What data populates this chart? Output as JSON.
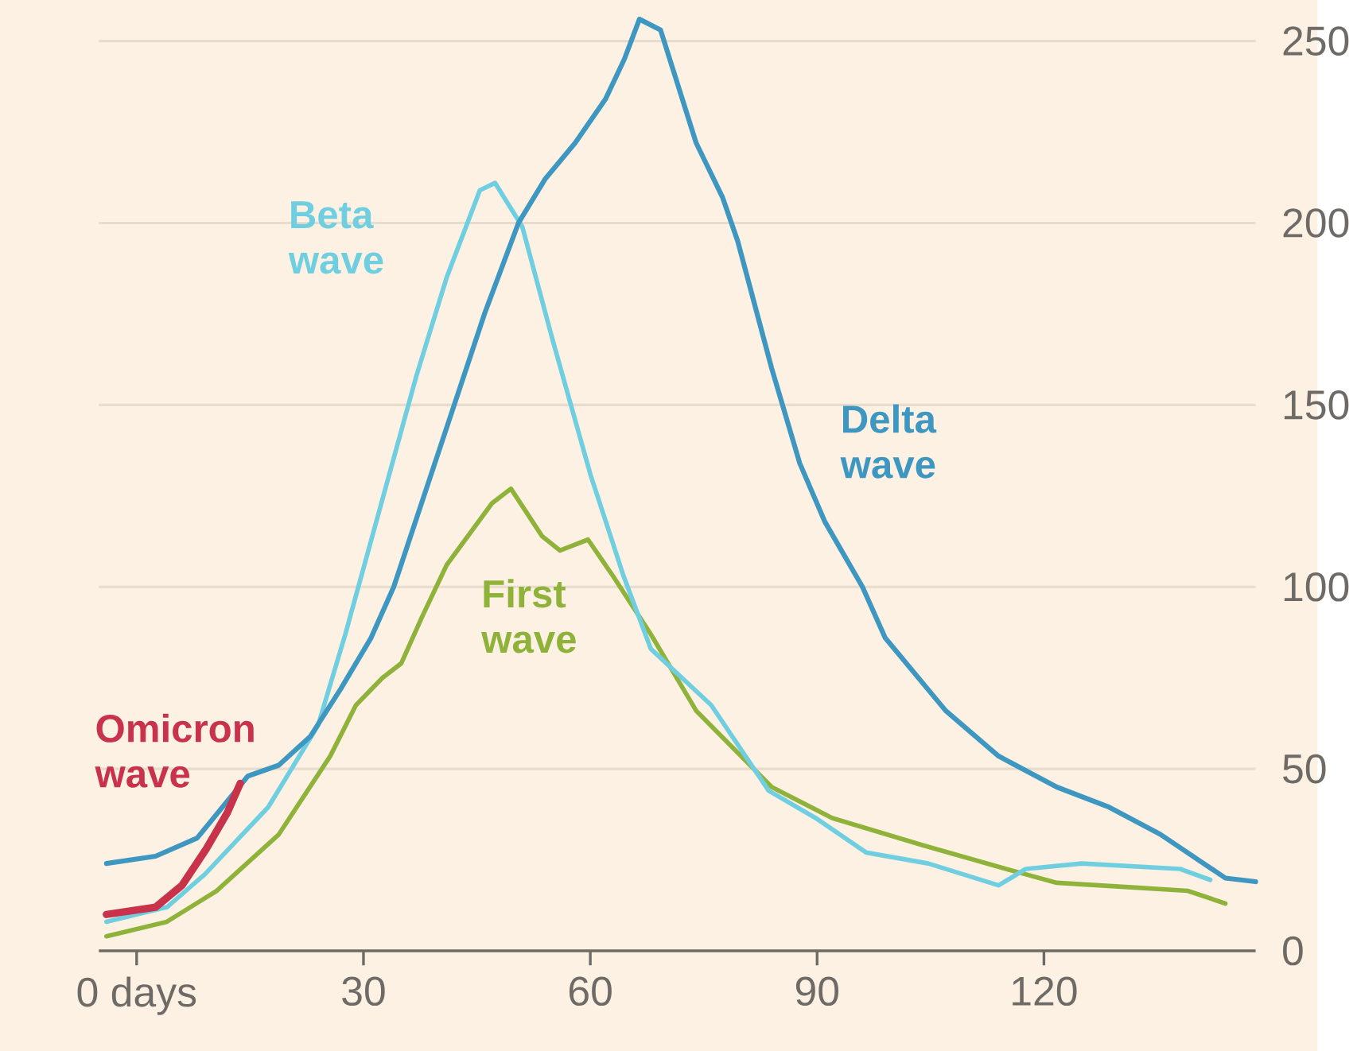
{
  "chart_data": {
    "type": "line",
    "xlim": [
      -5,
      148
    ],
    "ylim": [
      0,
      260
    ],
    "xticks": [
      {
        "value": 0,
        "label": "0 days"
      },
      30,
      60,
      90,
      120
    ],
    "yticks": [
      0,
      50,
      100,
      150,
      200,
      250
    ],
    "grid": "y",
    "series": [
      {
        "name": "First wave",
        "color": "#8fb33a",
        "x": [
          -4,
          4,
          10.6,
          18.8,
          25.6,
          29,
          32.5,
          35,
          37.8,
          41,
          47,
          49.5,
          53.6,
          56,
          59.7,
          63,
          68,
          74,
          84,
          92,
          104,
          115,
          121.7,
          132,
          139,
          144
        ],
        "values": [
          4,
          8,
          16.5,
          32,
          53.5,
          67.5,
          75,
          79,
          92,
          106,
          123,
          127,
          114,
          110,
          113,
          103,
          87,
          66,
          45,
          36.5,
          29,
          22.5,
          18.7,
          17.4,
          16.5,
          13
        ]
      },
      {
        "name": "Beta wave",
        "color": "#6fcfe0",
        "x": [
          -4,
          4,
          9,
          17.4,
          24,
          27.6,
          37,
          41,
          45.4,
          47.4,
          51,
          55,
          60,
          64.4,
          68,
          76,
          83.6,
          89.8,
          96.5,
          104.7,
          114,
          117.6,
          125,
          138,
          142
        ],
        "values": [
          8,
          12,
          21,
          39.5,
          62,
          87,
          158,
          185,
          209,
          211,
          199,
          168,
          131,
          103,
          83,
          67.5,
          44,
          36.5,
          27,
          24,
          18,
          22.5,
          24,
          22.5,
          19.5
        ]
      },
      {
        "name": "Delta wave",
        "color": "#3d97c0",
        "x": [
          -4,
          2.5,
          8,
          14.7,
          18.8,
          23,
          27,
          31,
          34,
          42,
          46,
          50.5,
          54,
          58,
          62,
          64.5,
          66.5,
          69.3,
          74,
          77.5,
          79.5,
          84,
          87.7,
          91,
          96,
          99,
          107,
          114,
          121.7,
          128.6,
          135.4,
          144,
          148
        ],
        "values": [
          24,
          26,
          31,
          48,
          51,
          59,
          72,
          86,
          100,
          150,
          175,
          200,
          212,
          222,
          234,
          245,
          256,
          253,
          222,
          207,
          195,
          160,
          134,
          118,
          100,
          86,
          66,
          53.5,
          45,
          39.5,
          32,
          20,
          19
        ]
      },
      {
        "name": "Omicron wave",
        "color": "#c8324a",
        "x": [
          -4,
          2.5,
          6,
          9.2,
          12,
          13.7
        ],
        "values": [
          10,
          12,
          18,
          28,
          38,
          46
        ]
      }
    ]
  }
}
